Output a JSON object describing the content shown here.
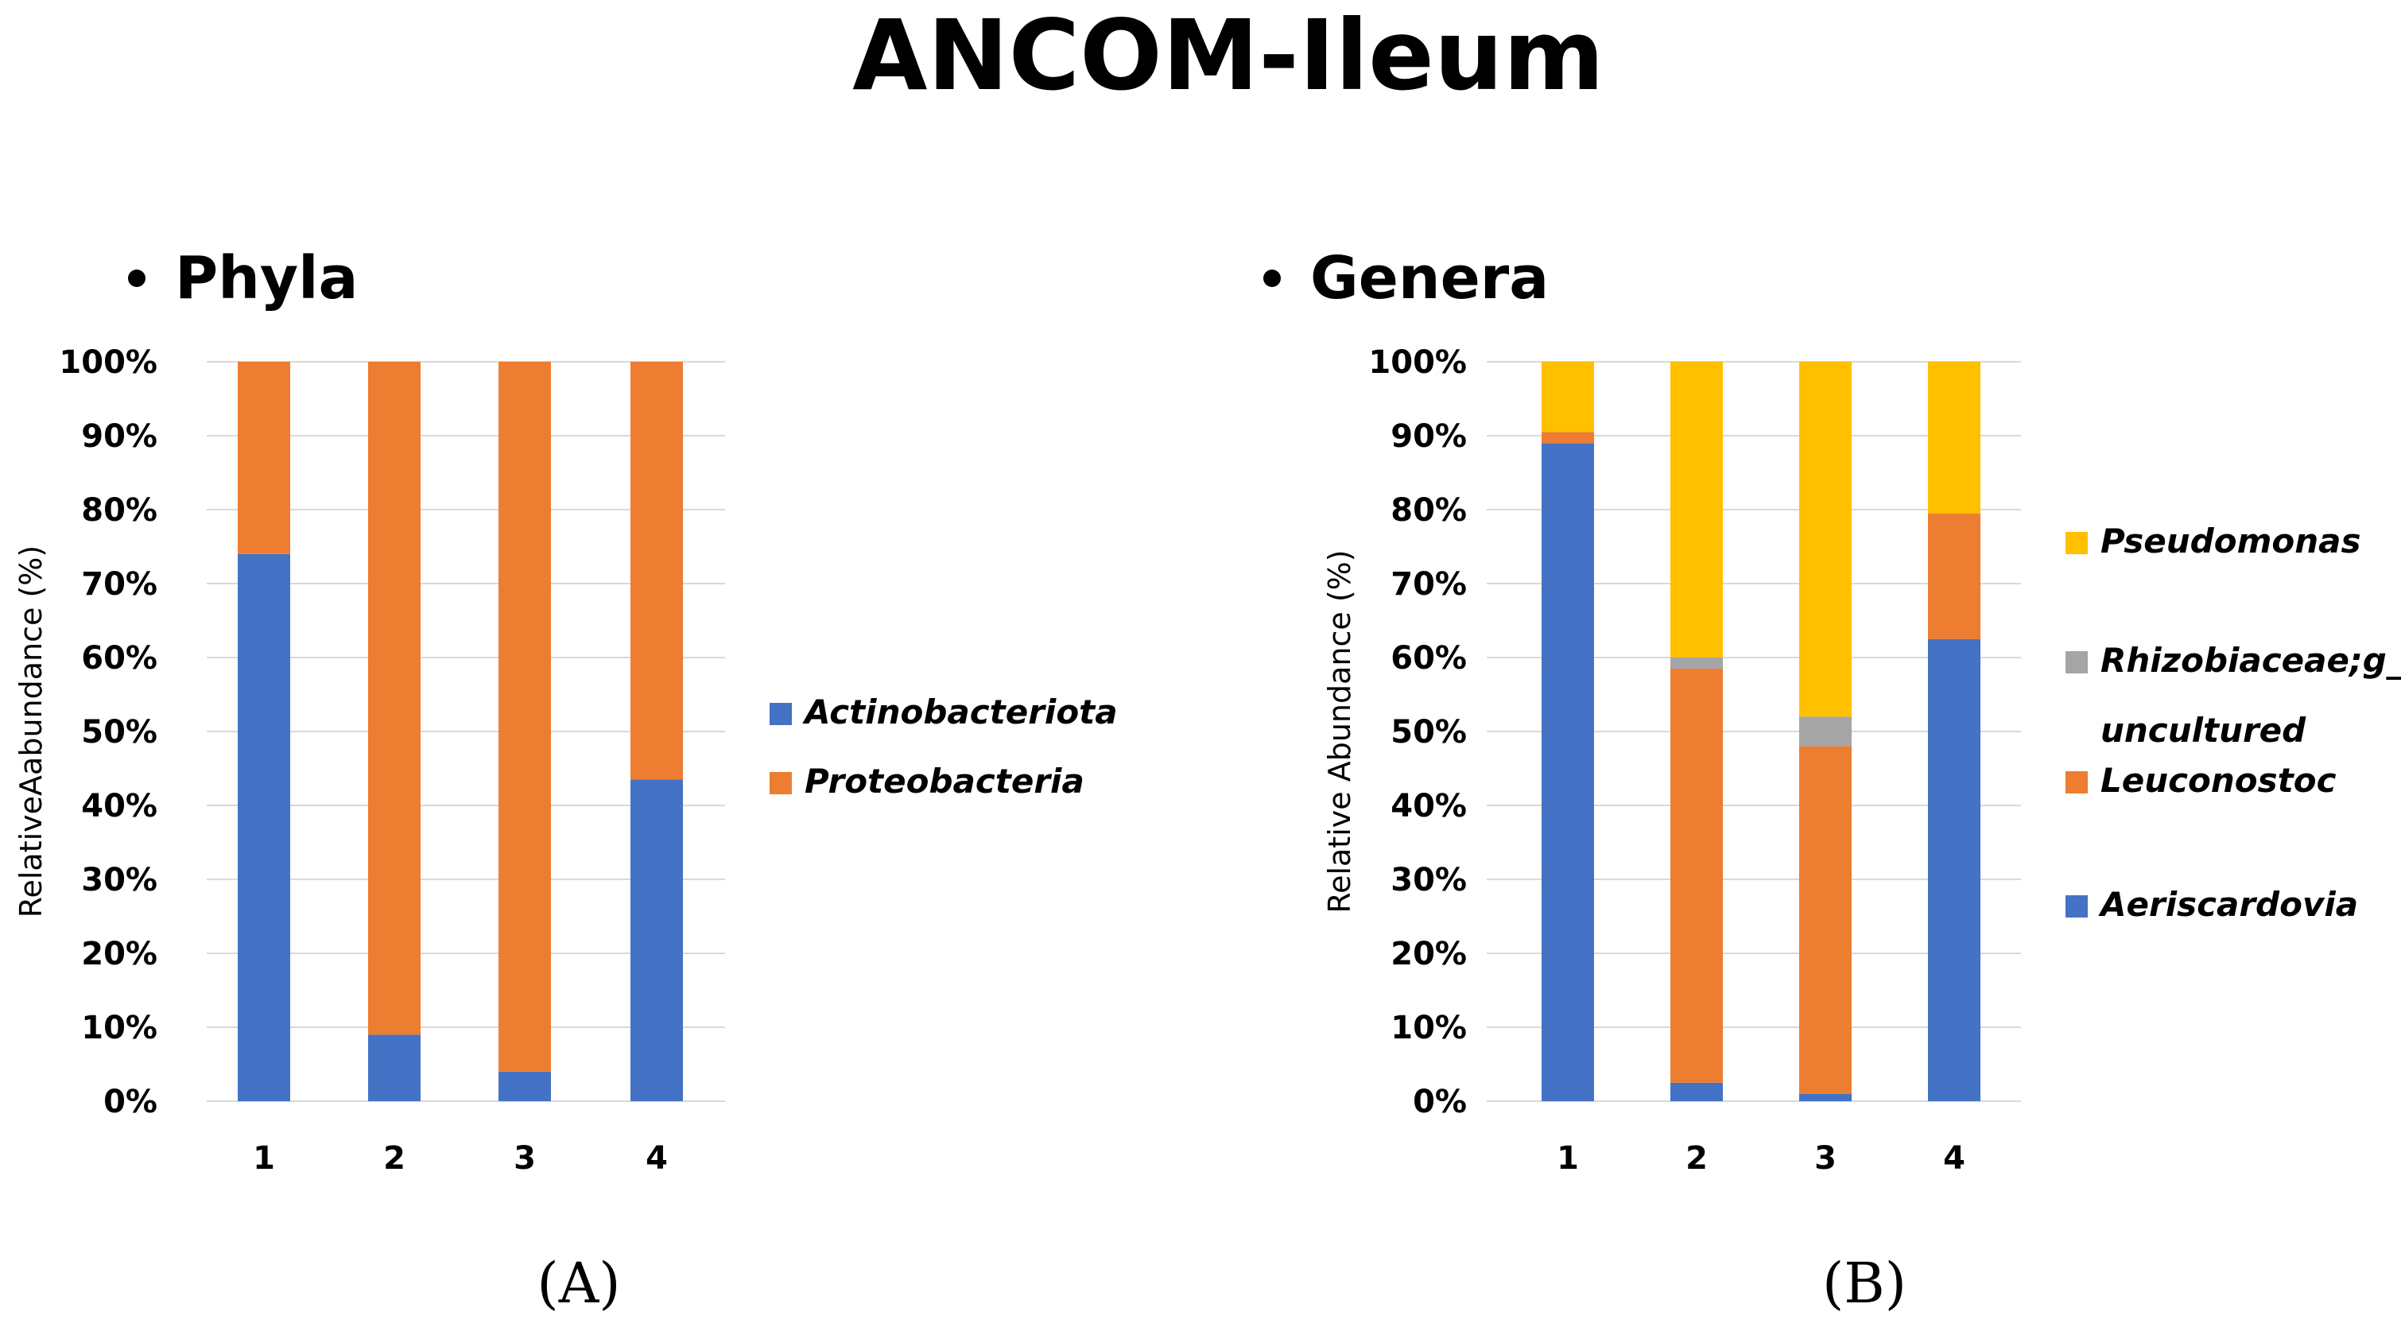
{
  "title": "ANCOM-Ileum",
  "panels": [
    {
      "label": "(A)"
    },
    {
      "label": "(B)"
    }
  ],
  "chart_data": [
    {
      "type": "bar",
      "stacked": true,
      "title": "Phyla",
      "xlabel": "",
      "ylabel": "RelativeAabundance (%)",
      "categories": [
        "1",
        "2",
        "3",
        "4"
      ],
      "yticks": [
        "0%",
        "10%",
        "20%",
        "30%",
        "40%",
        "50%",
        "60%",
        "70%",
        "80%",
        "90%",
        "100%"
      ],
      "ylim": [
        0,
        100
      ],
      "grid": true,
      "legend_position": "right",
      "series": [
        {
          "name": "Actinobacteriota",
          "color": "#4472C4",
          "values": [
            74,
            9,
            4,
            43.5
          ]
        },
        {
          "name": "Proteobacteria",
          "color": "#ED7D31",
          "values": [
            26,
            91,
            96,
            56.5
          ]
        }
      ]
    },
    {
      "type": "bar",
      "stacked": true,
      "title": "Genera",
      "xlabel": "",
      "ylabel": "Relative Abundance (%)",
      "categories": [
        "1",
        "2",
        "3",
        "4"
      ],
      "yticks": [
        "0%",
        "10%",
        "20%",
        "30%",
        "40%",
        "50%",
        "60%",
        "70%",
        "80%",
        "90%",
        "100%"
      ],
      "ylim": [
        0,
        100
      ],
      "grid": true,
      "legend_position": "right",
      "series": [
        {
          "name": "Aeriscardovia",
          "color": "#4472C4",
          "values": [
            89,
            2.5,
            1,
            62.5
          ]
        },
        {
          "name": "Leuconostoc",
          "color": "#ED7D31",
          "values": [
            1.5,
            56,
            47,
            17
          ]
        },
        {
          "name": "Rhizobiaceae;g__ uncultured",
          "color": "#A5A5A5",
          "values": [
            0,
            1.5,
            4,
            0
          ]
        },
        {
          "name": "Pseudomonas",
          "color": "#FFC000",
          "values": [
            9.5,
            40,
            48,
            20.5
          ]
        }
      ]
    }
  ]
}
